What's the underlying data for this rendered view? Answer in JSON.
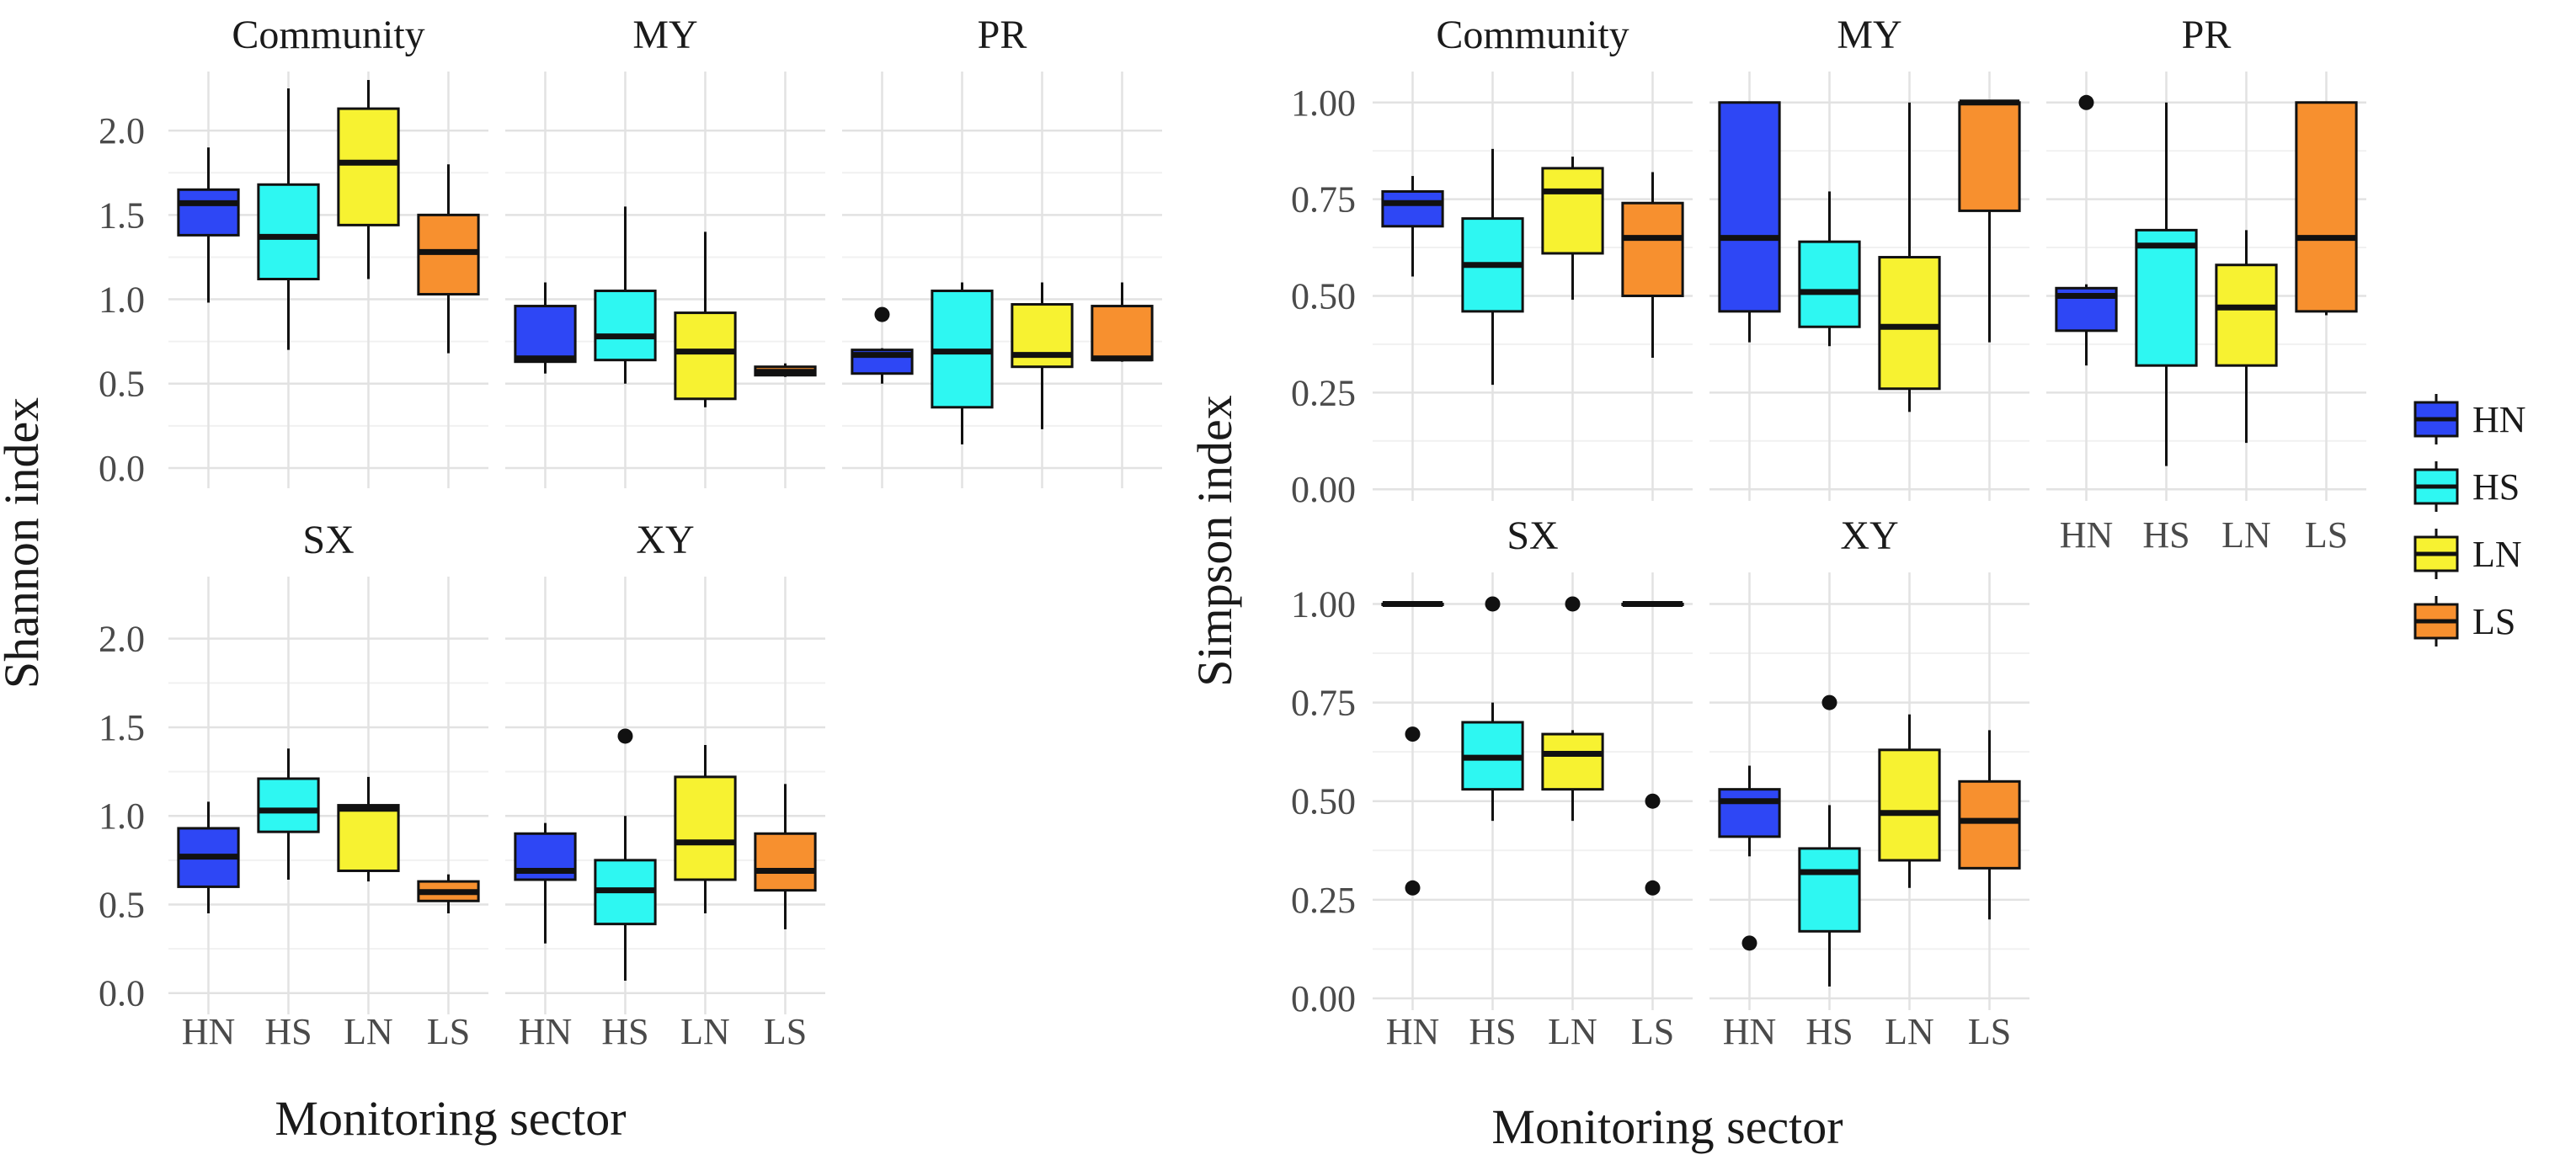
{
  "chart_data": [
    {
      "type": "boxplot",
      "ylabel": "Shannon index",
      "xlabel": "Monitoring sector",
      "categories": [
        "HN",
        "HS",
        "LN",
        "LS"
      ],
      "yticks": [
        "0.0",
        "0.5",
        "1.0",
        "1.5",
        "2.0"
      ],
      "ylim": [
        -0.12,
        2.35
      ],
      "grid": true,
      "facets": [
        {
          "title": "Community",
          "boxes": [
            {
              "group": "HN",
              "min": 0.98,
              "q1": 1.38,
              "median": 1.57,
              "q3": 1.65,
              "max": 1.9,
              "outliers": []
            },
            {
              "group": "HS",
              "min": 0.7,
              "q1": 1.12,
              "median": 1.37,
              "q3": 1.68,
              "max": 2.25,
              "outliers": []
            },
            {
              "group": "LN",
              "min": 1.12,
              "q1": 1.44,
              "median": 1.81,
              "q3": 2.13,
              "max": 2.3,
              "outliers": []
            },
            {
              "group": "LS",
              "min": 0.68,
              "q1": 1.03,
              "median": 1.28,
              "q3": 1.5,
              "max": 1.8,
              "outliers": []
            }
          ]
        },
        {
          "title": "MY",
          "boxes": [
            {
              "group": "HN",
              "min": 0.56,
              "q1": 0.63,
              "median": 0.65,
              "q3": 0.96,
              "max": 1.1,
              "outliers": []
            },
            {
              "group": "HS",
              "min": 0.5,
              "q1": 0.64,
              "median": 0.78,
              "q3": 1.05,
              "max": 1.55,
              "outliers": []
            },
            {
              "group": "LN",
              "min": 0.36,
              "q1": 0.41,
              "median": 0.69,
              "q3": 0.92,
              "max": 1.4,
              "outliers": []
            },
            {
              "group": "LS",
              "min": 0.54,
              "q1": 0.55,
              "median": 0.57,
              "q3": 0.6,
              "max": 0.62,
              "outliers": []
            }
          ]
        },
        {
          "title": "PR",
          "boxes": [
            {
              "group": "HN",
              "min": 0.5,
              "q1": 0.56,
              "median": 0.67,
              "q3": 0.7,
              "max": 0.71,
              "outliers": [
                0.91
              ]
            },
            {
              "group": "HS",
              "min": 0.14,
              "q1": 0.36,
              "median": 0.69,
              "q3": 1.05,
              "max": 1.1,
              "outliers": []
            },
            {
              "group": "LN",
              "min": 0.23,
              "q1": 0.6,
              "median": 0.67,
              "q3": 0.97,
              "max": 1.1,
              "outliers": []
            },
            {
              "group": "LS",
              "min": 0.63,
              "q1": 0.64,
              "median": 0.65,
              "q3": 0.96,
              "max": 1.1,
              "outliers": []
            }
          ]
        },
        {
          "title": "SX",
          "boxes": [
            {
              "group": "HN",
              "min": 0.45,
              "q1": 0.6,
              "median": 0.77,
              "q3": 0.93,
              "max": 1.08,
              "outliers": []
            },
            {
              "group": "HS",
              "min": 0.64,
              "q1": 0.91,
              "median": 1.03,
              "q3": 1.21,
              "max": 1.38,
              "outliers": []
            },
            {
              "group": "LN",
              "min": 0.63,
              "q1": 0.69,
              "median": 1.04,
              "q3": 1.06,
              "max": 1.22,
              "outliers": []
            },
            {
              "group": "LS",
              "min": 0.45,
              "q1": 0.52,
              "median": 0.57,
              "q3": 0.63,
              "max": 0.67,
              "outliers": []
            }
          ]
        },
        {
          "title": "XY",
          "boxes": [
            {
              "group": "HN",
              "min": 0.28,
              "q1": 0.64,
              "median": 0.69,
              "q3": 0.9,
              "max": 0.96,
              "outliers": []
            },
            {
              "group": "HS",
              "min": 0.07,
              "q1": 0.39,
              "median": 0.58,
              "q3": 0.75,
              "max": 1.0,
              "outliers": [
                1.45
              ]
            },
            {
              "group": "LN",
              "min": 0.45,
              "q1": 0.64,
              "median": 0.85,
              "q3": 1.22,
              "max": 1.4,
              "outliers": []
            },
            {
              "group": "LS",
              "min": 0.36,
              "q1": 0.58,
              "median": 0.69,
              "q3": 0.9,
              "max": 1.18,
              "outliers": []
            }
          ]
        }
      ]
    },
    {
      "type": "boxplot",
      "ylabel": "Simpson index",
      "xlabel": "Monitoring sector",
      "categories": [
        "HN",
        "HS",
        "LN",
        "LS"
      ],
      "yticks": [
        "0.00",
        "0.25",
        "0.50",
        "0.75",
        "1.00"
      ],
      "ylim": [
        -0.03,
        1.08
      ],
      "grid": true,
      "facets": [
        {
          "title": "Community",
          "boxes": [
            {
              "group": "HN",
              "min": 0.55,
              "q1": 0.68,
              "median": 0.74,
              "q3": 0.77,
              "max": 0.81,
              "outliers": []
            },
            {
              "group": "HS",
              "min": 0.27,
              "q1": 0.46,
              "median": 0.58,
              "q3": 0.7,
              "max": 0.88,
              "outliers": []
            },
            {
              "group": "LN",
              "min": 0.49,
              "q1": 0.61,
              "median": 0.77,
              "q3": 0.83,
              "max": 0.86,
              "outliers": []
            },
            {
              "group": "LS",
              "min": 0.34,
              "q1": 0.5,
              "median": 0.65,
              "q3": 0.74,
              "max": 0.82,
              "outliers": []
            }
          ]
        },
        {
          "title": "MY",
          "boxes": [
            {
              "group": "HN",
              "min": 0.38,
              "q1": 0.46,
              "median": 0.65,
              "q3": 1.0,
              "max": 1.0,
              "outliers": []
            },
            {
              "group": "HS",
              "min": 0.37,
              "q1": 0.42,
              "median": 0.51,
              "q3": 0.64,
              "max": 0.77,
              "outliers": []
            },
            {
              "group": "LN",
              "min": 0.2,
              "q1": 0.26,
              "median": 0.42,
              "q3": 0.6,
              "max": 1.0,
              "outliers": []
            },
            {
              "group": "LS",
              "min": 0.38,
              "q1": 0.72,
              "median": 1.0,
              "q3": 1.0,
              "max": 1.0,
              "outliers": []
            }
          ]
        },
        {
          "title": "PR",
          "boxes": [
            {
              "group": "HN",
              "min": 0.32,
              "q1": 0.41,
              "median": 0.5,
              "q3": 0.52,
              "max": 0.53,
              "outliers": [
                1.0
              ]
            },
            {
              "group": "HS",
              "min": 0.06,
              "q1": 0.32,
              "median": 0.63,
              "q3": 0.67,
              "max": 1.0,
              "outliers": []
            },
            {
              "group": "LN",
              "min": 0.12,
              "q1": 0.32,
              "median": 0.47,
              "q3": 0.58,
              "max": 0.67,
              "outliers": []
            },
            {
              "group": "LS",
              "min": 0.45,
              "q1": 0.46,
              "median": 0.65,
              "q3": 1.0,
              "max": 1.0,
              "outliers": []
            }
          ]
        },
        {
          "title": "SX",
          "boxes": [
            {
              "group": "HN",
              "min": 1.0,
              "q1": 1.0,
              "median": 1.0,
              "q3": 1.0,
              "max": 1.0,
              "outliers": [
                0.67,
                0.28
              ]
            },
            {
              "group": "HS",
              "min": 0.45,
              "q1": 0.53,
              "median": 0.61,
              "q3": 0.7,
              "max": 0.75,
              "outliers": [
                1.0
              ]
            },
            {
              "group": "LN",
              "min": 0.45,
              "q1": 0.53,
              "median": 0.62,
              "q3": 0.67,
              "max": 0.68,
              "outliers": [
                1.0
              ]
            },
            {
              "group": "LS",
              "min": 1.0,
              "q1": 1.0,
              "median": 1.0,
              "q3": 1.0,
              "max": 1.0,
              "outliers": [
                0.5,
                0.28
              ]
            }
          ]
        },
        {
          "title": "XY",
          "boxes": [
            {
              "group": "HN",
              "min": 0.36,
              "q1": 0.41,
              "median": 0.5,
              "q3": 0.53,
              "max": 0.59,
              "outliers": [
                0.14
              ]
            },
            {
              "group": "HS",
              "min": 0.03,
              "q1": 0.17,
              "median": 0.32,
              "q3": 0.38,
              "max": 0.49,
              "outliers": [
                0.75
              ]
            },
            {
              "group": "LN",
              "min": 0.28,
              "q1": 0.35,
              "median": 0.47,
              "q3": 0.63,
              "max": 0.72,
              "outliers": []
            },
            {
              "group": "LS",
              "min": 0.2,
              "q1": 0.33,
              "median": 0.45,
              "q3": 0.55,
              "max": 0.68,
              "outliers": []
            }
          ]
        }
      ]
    }
  ],
  "legend": {
    "placement": "right",
    "items": [
      {
        "label": "HN",
        "color": "#2E47F5"
      },
      {
        "label": "HS",
        "color": "#2EF7F2"
      },
      {
        "label": "LN",
        "color": "#F7F231"
      },
      {
        "label": "LS",
        "color": "#F7902F"
      }
    ]
  }
}
